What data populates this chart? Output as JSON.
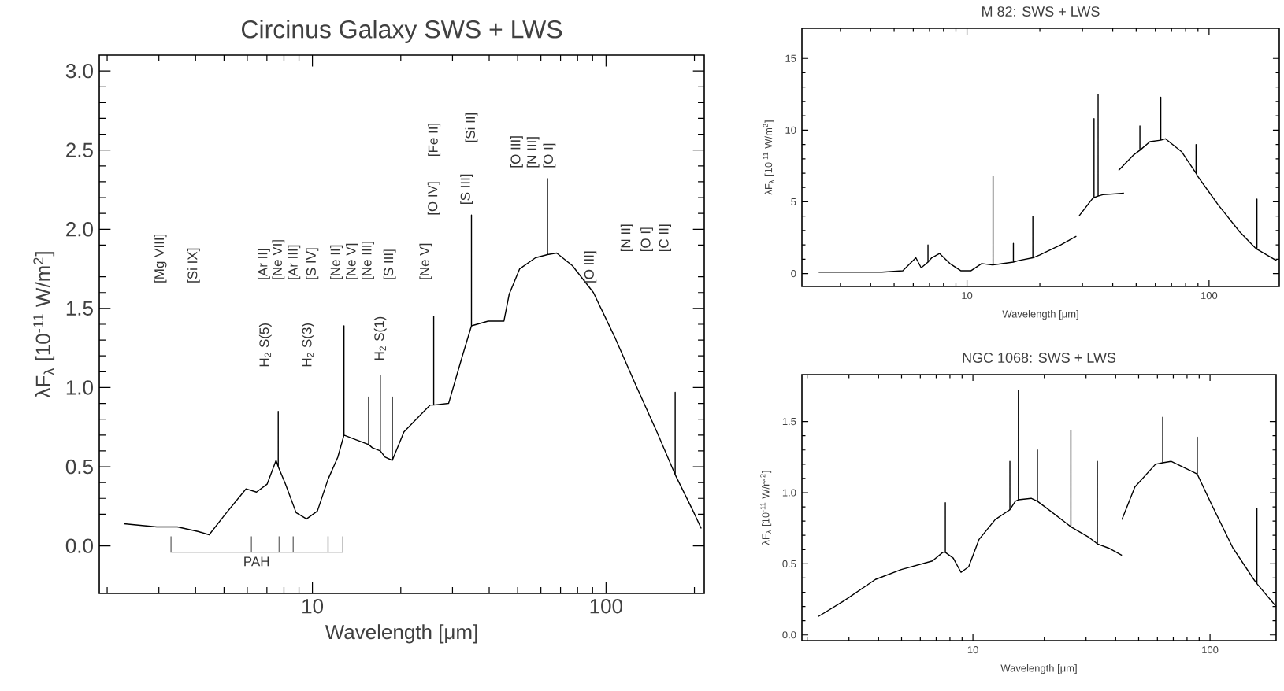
{
  "chart_data": [
    {
      "type": "line",
      "title": "Circinus Galaxy   SWS + LWS",
      "xlabel": "Wavelength [μm]",
      "ylabel": "λF$_{λ}$ [10$^{-11}$ W/m$^{2}$]",
      "log": "x",
      "xlim": [
        1.88,
        216
      ],
      "ylim": [
        -0.3,
        3.1
      ],
      "xticks": [
        {
          "value": 2,
          "label": null
        },
        {
          "value": 3,
          "label": null
        },
        {
          "value": 4,
          "label": null
        },
        {
          "value": 5,
          "label": null
        },
        {
          "value": 6,
          "label": null
        },
        {
          "value": 7,
          "label": null
        },
        {
          "value": 8,
          "label": null
        },
        {
          "value": 9,
          "label": null
        },
        10,
        {
          "value": 20,
          "label": null
        },
        {
          "value": 30,
          "label": null
        },
        {
          "value": 40,
          "label": null
        },
        {
          "value": 50,
          "label": null
        },
        {
          "value": 60,
          "label": null
        },
        {
          "value": 70,
          "label": null
        },
        {
          "value": 80,
          "label": null
        },
        {
          "value": 90,
          "label": null
        },
        100,
        {
          "value": 200,
          "label": null
        }
      ],
      "yticks": [
        {
          "value": 0,
          "label": "0.0"
        },
        {
          "value": 0.5,
          "label": "0.5"
        },
        {
          "value": 1,
          "label": "1.0"
        },
        {
          "value": 1.5,
          "label": "1.5"
        },
        {
          "value": 2,
          "label": "2.0"
        },
        {
          "value": 2.5,
          "label": "2.5"
        },
        {
          "value": 3,
          "label": "3.0"
        }
      ],
      "series": [
        {
          "color": "#000000",
          "x": [
            2.28,
            2.95,
            3.47,
            4.1,
            4.45,
            5.05,
            5.94,
            6.45,
            7.01,
            7.52,
            7.65,
            7.65,
            7.65,
            8.1,
            8.8,
            9.55,
            10.4,
            11.3,
            12.2,
            12.81,
            12.81,
            12.81,
            14.1,
            15.55,
            15.55,
            15.55,
            16.0,
            17.03,
            17.03,
            17.03,
            17.7,
            18.71,
            18.71,
            18.71,
            20.5,
            22.3,
            25.2,
            25.89,
            25.89,
            25.89,
            29.1,
            32.3,
            34.81,
            34.81,
            34.81,
            39.7,
            44.9,
            46.8,
            50.8,
            57.5,
            63.18,
            63.18,
            63.18,
            67.9,
            76.8,
            90.6,
            107,
            126,
            149,
            172,
            172,
            172,
            198,
            211
          ],
          "values": [
            0.14,
            0.12,
            0.12,
            0.09,
            0.07,
            0.2,
            0.36,
            0.34,
            0.39,
            0.54,
            0.5,
            0.85,
            0.5,
            0.39,
            0.21,
            0.17,
            0.22,
            0.42,
            0.56,
            0.7,
            1.39,
            0.7,
            0.67,
            0.64,
            0.94,
            0.64,
            0.62,
            0.6,
            1.08,
            0.6,
            0.56,
            0.54,
            0.94,
            0.54,
            0.72,
            0.79,
            0.89,
            0.89,
            1.45,
            0.89,
            0.9,
            1.19,
            1.39,
            2.09,
            1.39,
            1.42,
            1.42,
            1.59,
            1.75,
            1.82,
            1.84,
            2.32,
            1.84,
            1.85,
            1.77,
            1.6,
            1.32,
            1.02,
            0.72,
            0.45,
            0.97,
            0.45,
            0.22,
            0.11
          ]
        }
      ],
      "annotations": [
        "[Mg VIII]",
        "[Si IX]",
        "H$_{2}$ S(5)",
        "[Ar II]",
        "[Ne VI]",
        "[Ar III]",
        "H$_{2}$ S(3)",
        "[S IV]",
        "[Ne II]",
        "[Ne V]",
        "[Ne III]",
        "H$_{2}$ S(1)",
        "[S III]",
        "[Ne V]",
        "[O IV]",
        "[Fe II]",
        "[S III]",
        "[Si II]",
        "[O III]",
        "[N III]",
        "[O I]",
        "[O III]",
        "[N II]",
        "[O I]",
        "[C II]",
        "PAH"
      ]
    },
    {
      "type": "line",
      "title": "M 82: SWS + LWS",
      "xlabel": "Wavelength [μm]",
      "ylabel": "λF$_{λ}$ [10$^{-11}$ W/m$^{2}$]",
      "log": "x",
      "xlim": [
        2.08,
        195
      ],
      "ylim": [
        -0.9,
        17.1
      ],
      "xticks": [
        {
          "value": 3,
          "label": null
        },
        {
          "value": 4,
          "label": null
        },
        {
          "value": 5,
          "label": null
        },
        {
          "value": 6,
          "label": null
        },
        {
          "value": 7,
          "label": null
        },
        {
          "value": 8,
          "label": null
        },
        {
          "value": 9,
          "label": null
        },
        10,
        {
          "value": 20,
          "label": null
        },
        {
          "value": 30,
          "label": null
        },
        {
          "value": 40,
          "label": null
        },
        {
          "value": 50,
          "label": null
        },
        {
          "value": 60,
          "label": null
        },
        {
          "value": 70,
          "label": null
        },
        {
          "value": 80,
          "label": null
        },
        {
          "value": 90,
          "label": null
        },
        100
      ],
      "yticks": [
        0,
        5,
        10,
        15
      ],
      "series": [
        {
          "color": "#000000",
          "x": [
            2.44,
            3.46,
            4.45,
            5.43,
            6.15,
            6.47,
            6.9,
            6.9,
            6.9,
            7.15,
            7.7,
            8.5,
            9.42,
            10.4,
            11.5,
            12.7,
            12.81,
            12.81,
            12.81,
            15.55,
            15.55,
            15.55,
            16.3,
            18.71,
            18.71,
            18.71,
            20,
            24.4,
            28.3,
            null,
            29,
            32.9,
            33.48,
            33.48,
            33.48,
            34.81,
            34.81,
            34.81,
            36.4,
            44.5,
            null,
            42.3,
            49,
            51.8,
            51.8,
            51.8,
            57,
            63.18,
            63.18,
            63.18,
            66,
            77,
            88.36,
            88.36,
            88.36,
            89.6,
            109,
            134,
            155,
            157.7,
            157.7,
            157.7,
            190
          ],
          "values": [
            0.1,
            0.1,
            0.1,
            0.2,
            1.1,
            0.4,
            0.8,
            2.0,
            0.8,
            1.1,
            1.4,
            0.7,
            0.2,
            0.2,
            0.7,
            0.6,
            0.6,
            6.8,
            0.6,
            0.8,
            2.1,
            0.8,
            0.9,
            1.1,
            4.0,
            1.1,
            1.3,
            2.0,
            2.6,
            null,
            4.0,
            5.2,
            5.3,
            10.8,
            5.3,
            5.4,
            12.5,
            5.4,
            5.5,
            5.6,
            null,
            7.2,
            8.3,
            8.6,
            10.3,
            8.6,
            9.2,
            9.3,
            12.3,
            9.3,
            9.4,
            8.5,
            7.0,
            9.0,
            7.0,
            6.8,
            4.8,
            2.9,
            1.8,
            1.7,
            5.2,
            1.7,
            0.9
          ]
        }
      ]
    },
    {
      "type": "line",
      "title": "NGC 1068: SWS + LWS",
      "xlabel": "Wavelength [μm]",
      "ylabel": "λF$_{λ}$ [10$^{-11}$ W/m$^{2}$]",
      "log": "x",
      "xlim": [
        1.9,
        190
      ],
      "ylim": [
        -0.04,
        1.83
      ],
      "xticks": [
        {
          "value": 2,
          "label": null
        },
        {
          "value": 3,
          "label": null
        },
        {
          "value": 4,
          "label": null
        },
        {
          "value": 5,
          "label": null
        },
        {
          "value": 6,
          "label": null
        },
        {
          "value": 7,
          "label": null
        },
        {
          "value": 8,
          "label": null
        },
        {
          "value": 9,
          "label": null
        },
        10,
        {
          "value": 20,
          "label": null
        },
        {
          "value": 30,
          "label": null
        },
        {
          "value": 40,
          "label": null
        },
        {
          "value": 50,
          "label": null
        },
        {
          "value": 60,
          "label": null
        },
        {
          "value": 70,
          "label": null
        },
        {
          "value": 80,
          "label": null
        },
        {
          "value": 90,
          "label": null
        },
        100
      ],
      "yticks": [
        {
          "value": 0,
          "label": "0.0"
        },
        {
          "value": 0.5,
          "label": "0.5"
        },
        {
          "value": 1,
          "label": "1.0"
        },
        {
          "value": 1.5,
          "label": "1.5"
        }
      ],
      "series": [
        {
          "color": "#000000",
          "x": [
            2.23,
            2.86,
            3.88,
            4.99,
            6.75,
            7.46,
            7.65,
            7.65,
            7.65,
            8.26,
            8.91,
            9.6,
            10.6,
            12.4,
            14.32,
            14.32,
            14.32,
            15.1,
            15.55,
            15.55,
            15.55,
            17.6,
            18.71,
            18.71,
            18.71,
            20.5,
            25,
            25.89,
            25.89,
            25.89,
            30.6,
            33.48,
            33.48,
            33.48,
            37.4,
            42.5,
            null,
            42.5,
            48.2,
            58.9,
            63.18,
            63.18,
            63.18,
            68.5,
            83.8,
            88.36,
            88.36,
            88.36,
            102,
            125,
            153,
            157.7,
            157.7,
            157.7,
            190
          ],
          "values": [
            0.13,
            0.24,
            0.39,
            0.46,
            0.52,
            0.58,
            0.58,
            0.93,
            0.58,
            0.54,
            0.44,
            0.48,
            0.67,
            0.81,
            0.88,
            1.22,
            0.88,
            0.94,
            0.95,
            1.72,
            0.95,
            0.96,
            0.94,
            1.3,
            0.94,
            0.89,
            0.78,
            0.76,
            1.44,
            0.76,
            0.69,
            0.64,
            1.22,
            0.64,
            0.61,
            0.56,
            null,
            0.81,
            1.04,
            1.2,
            1.21,
            1.53,
            1.21,
            1.22,
            1.15,
            1.13,
            1.39,
            1.13,
            0.91,
            0.61,
            0.39,
            0.36,
            0.89,
            0.36,
            0.2
          ]
        }
      ]
    }
  ]
}
